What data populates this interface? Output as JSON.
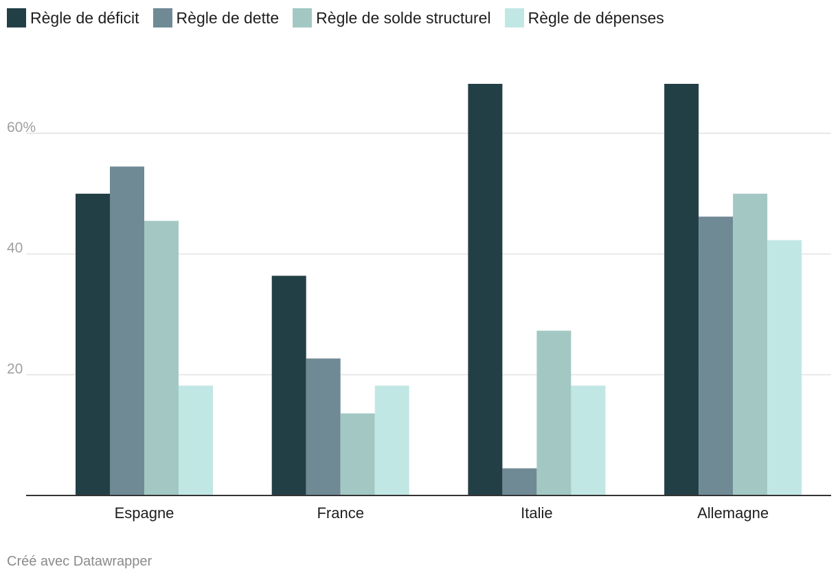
{
  "chart_data": {
    "type": "bar",
    "categories": [
      "Espagne",
      "France",
      "Italie",
      "Allemagne"
    ],
    "series": [
      {
        "name": "Règle de déficit",
        "color": "#233f46",
        "values": [
          50,
          36.4,
          68.2,
          68.2
        ]
      },
      {
        "name": "Règle de dette",
        "color": "#708a95",
        "values": [
          54.5,
          22.7,
          4.5,
          46.2
        ]
      },
      {
        "name": "Règle de solde structurel",
        "color": "#a3c8c3",
        "values": [
          45.5,
          13.6,
          27.3,
          50
        ]
      },
      {
        "name": "Règle de dépenses",
        "color": "#c1e7e4",
        "values": [
          18.2,
          18.2,
          18.2,
          42.3
        ]
      }
    ],
    "yticks": [
      20,
      40,
      60
    ],
    "ytick_labels": [
      "20",
      "40",
      "60%"
    ],
    "ylim": [
      0,
      68.2
    ],
    "grid": true,
    "legend_position": "top-left"
  },
  "credit": "Créé avec Datawrapper"
}
